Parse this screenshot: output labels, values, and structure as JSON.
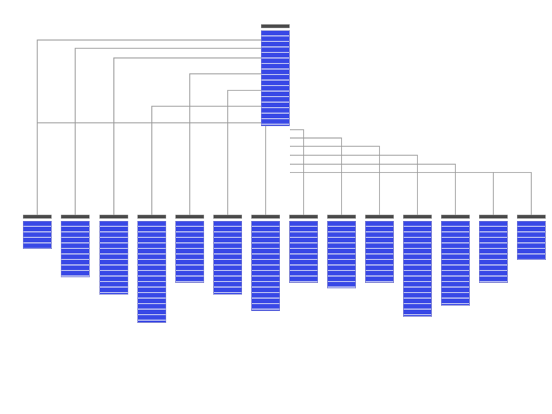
{
  "diagram": {
    "root_table": {
      "rows": 17
    },
    "child_tables": [
      {
        "rows": 5
      },
      {
        "rows": 10
      },
      {
        "rows": 13
      },
      {
        "rows": 18
      },
      {
        "rows": 11
      },
      {
        "rows": 13
      },
      {
        "rows": 16
      },
      {
        "rows": 11
      },
      {
        "rows": 12
      },
      {
        "rows": 11
      },
      {
        "rows": 17
      },
      {
        "rows": 15
      },
      {
        "rows": 11
      },
      {
        "rows": 7
      }
    ],
    "colors": {
      "header": "#4a4a4a",
      "row": "#3848e6",
      "row_separator": "#aab0f0",
      "line": "#9a9a9a"
    }
  }
}
